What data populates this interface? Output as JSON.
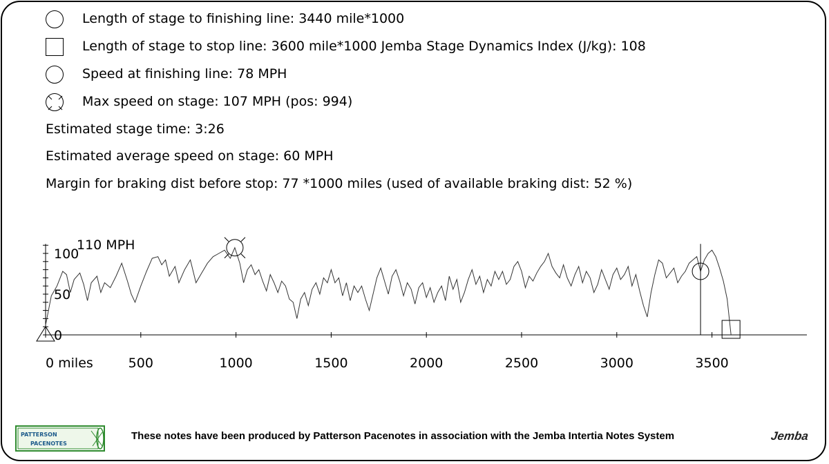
{
  "info": {
    "finish_length": "Length of stage to finishing line: 3440 mile*1000",
    "stop_length": "Length of stage to stop line: 3600 mile*1000 Jemba Stage Dynamics Index (J/kg): 108",
    "speed_finish": "Speed at finishing line: 78 MPH",
    "max_speed": "Max speed on stage: 107 MPH (pos: 994)",
    "stage_time": "Estimated stage time: 3:26",
    "avg_speed": "Estimated average speed on stage: 60 MPH",
    "braking_margin": "Margin for braking dist before stop: 77 *1000 miles (used of available braking dist: 52 %)"
  },
  "legend_icons": [
    "circle-icon",
    "square-icon",
    "circle-icon",
    "circle-x-icon"
  ],
  "footer": {
    "text": "These notes have been produced by Patterson Pacenotes in association with the Jemba Intertia Notes System",
    "logo_left_line1": "PATTERSON",
    "logo_left_line2": "PACENOTES",
    "logo_right": "Jemba"
  },
  "chart_data": {
    "type": "line",
    "title": "",
    "ylabel": "110 MPH",
    "xlim": [
      0,
      4000
    ],
    "ylim": [
      0,
      110
    ],
    "x_ticks": [
      0,
      500,
      1000,
      1500,
      2000,
      2500,
      3000,
      3500
    ],
    "x_tick_labels": [
      "0 miles",
      "500",
      "1000",
      "1500",
      "2000",
      "2500",
      "3000",
      "3500"
    ],
    "y_ticks": [
      0,
      50,
      100
    ],
    "y_tick_labels": [
      "0",
      "50",
      "100"
    ],
    "markers": {
      "max_speed": {
        "x": 994,
        "y": 107
      },
      "finish": {
        "x": 3440,
        "y": 78
      },
      "stop": {
        "x": 3600,
        "y": 0
      }
    },
    "series": [
      {
        "values": [
          [
            0,
            12
          ],
          [
            30,
            48
          ],
          [
            60,
            60
          ],
          [
            90,
            78
          ],
          [
            110,
            74
          ],
          [
            130,
            52
          ],
          [
            150,
            68
          ],
          [
            180,
            76
          ],
          [
            200,
            62
          ],
          [
            220,
            42
          ],
          [
            240,
            64
          ],
          [
            270,
            72
          ],
          [
            290,
            52
          ],
          [
            310,
            64
          ],
          [
            340,
            58
          ],
          [
            370,
            72
          ],
          [
            400,
            88
          ],
          [
            430,
            66
          ],
          [
            450,
            50
          ],
          [
            470,
            40
          ],
          [
            500,
            60
          ],
          [
            530,
            78
          ],
          [
            560,
            94
          ],
          [
            590,
            96
          ],
          [
            610,
            86
          ],
          [
            630,
            92
          ],
          [
            650,
            72
          ],
          [
            680,
            84
          ],
          [
            700,
            64
          ],
          [
            730,
            80
          ],
          [
            760,
            92
          ],
          [
            790,
            64
          ],
          [
            820,
            76
          ],
          [
            850,
            88
          ],
          [
            880,
            96
          ],
          [
            910,
            100
          ],
          [
            940,
            104
          ],
          [
            970,
            94
          ],
          [
            994,
            107
          ],
          [
            1020,
            88
          ],
          [
            1040,
            64
          ],
          [
            1060,
            80
          ],
          [
            1080,
            86
          ],
          [
            1100,
            74
          ],
          [
            1120,
            80
          ],
          [
            1140,
            66
          ],
          [
            1160,
            54
          ],
          [
            1180,
            74
          ],
          [
            1200,
            64
          ],
          [
            1220,
            52
          ],
          [
            1240,
            66
          ],
          [
            1260,
            60
          ],
          [
            1280,
            44
          ],
          [
            1300,
            40
          ],
          [
            1320,
            20
          ],
          [
            1340,
            44
          ],
          [
            1360,
            52
          ],
          [
            1380,
            36
          ],
          [
            1400,
            56
          ],
          [
            1420,
            64
          ],
          [
            1440,
            50
          ],
          [
            1460,
            70
          ],
          [
            1480,
            64
          ],
          [
            1500,
            80
          ],
          [
            1520,
            64
          ],
          [
            1540,
            70
          ],
          [
            1560,
            48
          ],
          [
            1580,
            64
          ],
          [
            1600,
            42
          ],
          [
            1620,
            60
          ],
          [
            1640,
            52
          ],
          [
            1660,
            60
          ],
          [
            1680,
            44
          ],
          [
            1700,
            30
          ],
          [
            1720,
            50
          ],
          [
            1740,
            70
          ],
          [
            1760,
            82
          ],
          [
            1780,
            66
          ],
          [
            1800,
            50
          ],
          [
            1820,
            72
          ],
          [
            1840,
            80
          ],
          [
            1860,
            66
          ],
          [
            1880,
            48
          ],
          [
            1900,
            64
          ],
          [
            1920,
            56
          ],
          [
            1940,
            38
          ],
          [
            1960,
            58
          ],
          [
            1980,
            64
          ],
          [
            2000,
            46
          ],
          [
            2020,
            58
          ],
          [
            2040,
            40
          ],
          [
            2060,
            52
          ],
          [
            2080,
            60
          ],
          [
            2100,
            42
          ],
          [
            2120,
            72
          ],
          [
            2140,
            56
          ],
          [
            2160,
            68
          ],
          [
            2180,
            40
          ],
          [
            2200,
            52
          ],
          [
            2220,
            68
          ],
          [
            2240,
            80
          ],
          [
            2260,
            62
          ],
          [
            2280,
            72
          ],
          [
            2300,
            52
          ],
          [
            2320,
            68
          ],
          [
            2340,
            60
          ],
          [
            2360,
            78
          ],
          [
            2380,
            68
          ],
          [
            2400,
            78
          ],
          [
            2420,
            62
          ],
          [
            2440,
            68
          ],
          [
            2460,
            84
          ],
          [
            2480,
            90
          ],
          [
            2500,
            78
          ],
          [
            2520,
            58
          ],
          [
            2540,
            72
          ],
          [
            2560,
            66
          ],
          [
            2580,
            76
          ],
          [
            2600,
            84
          ],
          [
            2620,
            90
          ],
          [
            2640,
            100
          ],
          [
            2660,
            84
          ],
          [
            2680,
            76
          ],
          [
            2700,
            70
          ],
          [
            2720,
            86
          ],
          [
            2740,
            70
          ],
          [
            2760,
            60
          ],
          [
            2780,
            74
          ],
          [
            2800,
            84
          ],
          [
            2820,
            64
          ],
          [
            2840,
            78
          ],
          [
            2860,
            70
          ],
          [
            2880,
            52
          ],
          [
            2900,
            62
          ],
          [
            2920,
            80
          ],
          [
            2940,
            68
          ],
          [
            2960,
            56
          ],
          [
            2980,
            74
          ],
          [
            3000,
            82
          ],
          [
            3020,
            68
          ],
          [
            3040,
            74
          ],
          [
            3060,
            84
          ],
          [
            3080,
            60
          ],
          [
            3100,
            74
          ],
          [
            3120,
            54
          ],
          [
            3140,
            36
          ],
          [
            3160,
            22
          ],
          [
            3180,
            52
          ],
          [
            3200,
            74
          ],
          [
            3220,
            92
          ],
          [
            3240,
            88
          ],
          [
            3260,
            70
          ],
          [
            3280,
            76
          ],
          [
            3300,
            82
          ],
          [
            3320,
            64
          ],
          [
            3340,
            72
          ],
          [
            3360,
            78
          ],
          [
            3380,
            88
          ],
          [
            3400,
            92
          ],
          [
            3420,
            96
          ],
          [
            3440,
            78
          ],
          [
            3460,
            92
          ],
          [
            3480,
            100
          ],
          [
            3500,
            104
          ],
          [
            3520,
            96
          ],
          [
            3540,
            82
          ],
          [
            3560,
            66
          ],
          [
            3580,
            44
          ],
          [
            3600,
            0
          ]
        ]
      }
    ]
  }
}
